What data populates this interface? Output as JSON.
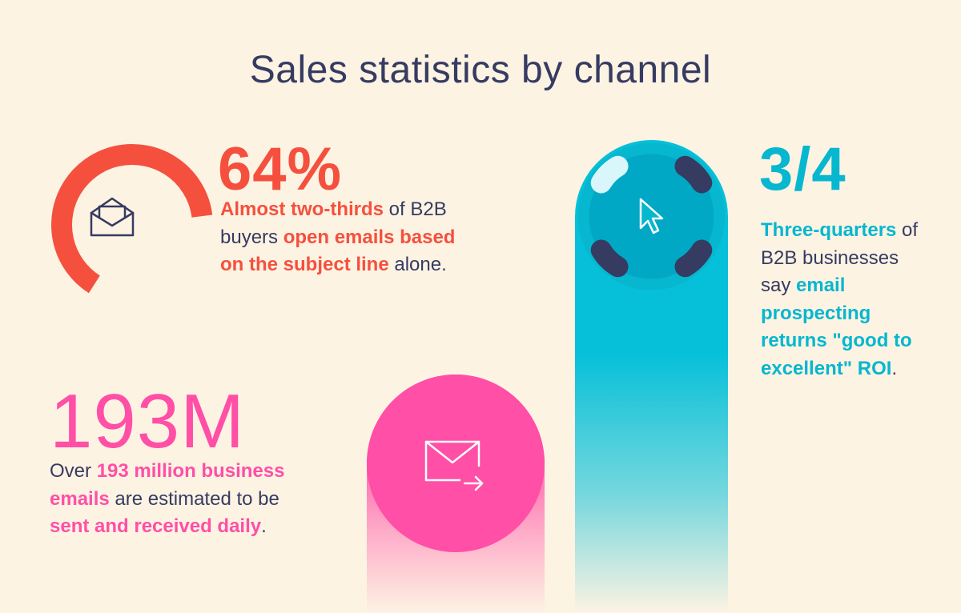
{
  "title": "Sales statistics by channel",
  "colors": {
    "background": "#fdf3e3",
    "navy": "#363b61",
    "red": "#f5503e",
    "pink": "#ff4fa6",
    "teal": "#06b7cf"
  },
  "stat_open_rate": {
    "value": "64%",
    "progress_fraction": 0.64,
    "icon": "open-envelope-icon",
    "text": {
      "p1": "Almost two-thirds",
      "p2": " of B2B buyers ",
      "p3": "open emails based on the subject line",
      "p4": " alone."
    }
  },
  "stat_volume": {
    "value": "193M",
    "icon": "send-mail-icon",
    "text": {
      "p1": "Over ",
      "p2": "193 million business emails",
      "p3": " are estimated to be ",
      "p4": "sent and received daily",
      "p5": "."
    }
  },
  "stat_roi": {
    "value": "3/4",
    "icon": "cursor-icon",
    "text": {
      "p1": "Three-quarters",
      "p2": " of B2B businesses say ",
      "p3": "email prospecting returns \"good to excellent\" ROI",
      "p4": "."
    }
  }
}
